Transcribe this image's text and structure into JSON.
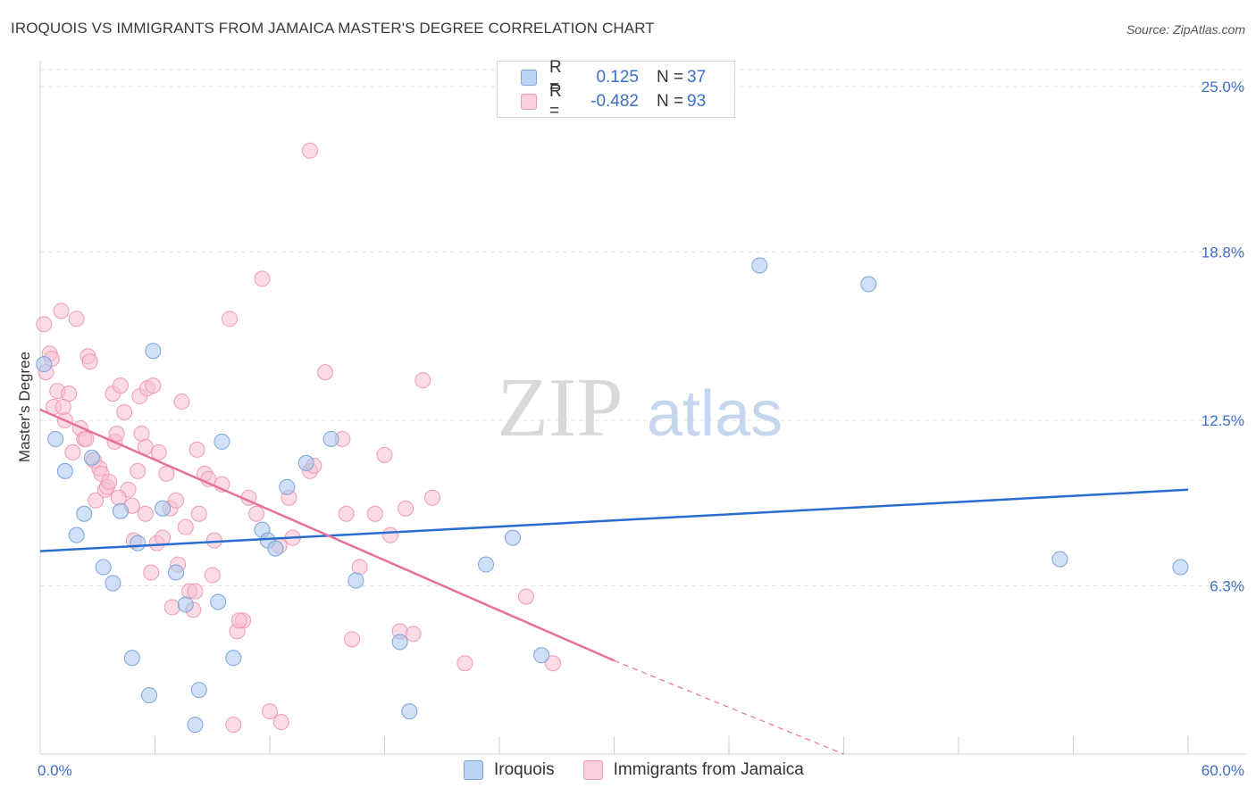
{
  "title": "IROQUOIS VS IMMIGRANTS FROM JAMAICA MASTER'S DEGREE CORRELATION CHART",
  "source": "Source: ZipAtlas.com",
  "watermark": {
    "zip": "ZIP",
    "atlas": "atlas"
  },
  "legend": {
    "rows": [
      {
        "r_label": "R =",
        "r_value": "0.125",
        "n_label": "N =",
        "n_value": "37"
      },
      {
        "r_label": "R =",
        "r_value": "-0.482",
        "n_label": "N =",
        "n_value": "93"
      }
    ]
  },
  "bottom_legend": [
    "Iroquois",
    "Immigrants from Jamaica"
  ],
  "colors": {
    "blue_fill": "#a9c6ee",
    "blue_stroke": "#7aa3d9",
    "blue_line": "#2a6dd1",
    "pink_fill": "#f7bfd0",
    "pink_stroke": "#ee9ab6",
    "pink_line": "#e8719a",
    "grid": "#e3e3e3",
    "axis_text": "#3b6fc6"
  },
  "chart_data": {
    "type": "scatter",
    "title": "IROQUOIS VS IMMIGRANTS FROM JAMAICA MASTER'S DEGREE CORRELATION CHART",
    "xlabel": "",
    "ylabel": "Master's Degree",
    "xlim": [
      0,
      60
    ],
    "ylim": [
      0,
      25
    ],
    "x_tick_labels": [
      "0.0%",
      "60.0%"
    ],
    "y_ticks": [
      6.3,
      12.5,
      18.8,
      25.0
    ],
    "y_tick_labels": [
      "6.3%",
      "12.5%",
      "18.8%",
      "25.0%"
    ],
    "grid": true,
    "series": [
      {
        "name": "Iroquois",
        "points": [
          [
            0.2,
            14.6
          ],
          [
            0.8,
            11.8
          ],
          [
            1.3,
            10.6
          ],
          [
            1.9,
            8.2
          ],
          [
            2.3,
            9.0
          ],
          [
            2.7,
            11.1
          ],
          [
            3.3,
            7.0
          ],
          [
            3.8,
            6.4
          ],
          [
            4.2,
            9.1
          ],
          [
            4.8,
            3.6
          ],
          [
            5.1,
            7.9
          ],
          [
            5.7,
            2.2
          ],
          [
            5.9,
            15.1
          ],
          [
            6.4,
            9.2
          ],
          [
            7.1,
            6.8
          ],
          [
            7.6,
            5.6
          ],
          [
            8.1,
            1.1
          ],
          [
            8.3,
            2.4
          ],
          [
            9.3,
            5.7
          ],
          [
            9.5,
            11.7
          ],
          [
            10.1,
            3.6
          ],
          [
            11.6,
            8.4
          ],
          [
            11.9,
            8.0
          ],
          [
            12.3,
            7.7
          ],
          [
            12.9,
            10.0
          ],
          [
            13.9,
            10.9
          ],
          [
            15.2,
            11.8
          ],
          [
            16.5,
            6.5
          ],
          [
            18.8,
            4.2
          ],
          [
            19.3,
            1.6
          ],
          [
            23.3,
            7.1
          ],
          [
            24.7,
            8.1
          ],
          [
            26.2,
            3.7
          ],
          [
            37.6,
            18.3
          ],
          [
            43.3,
            17.6
          ],
          [
            53.3,
            7.3
          ],
          [
            59.6,
            7.0
          ]
        ]
      },
      {
        "name": "Immigrants from Jamaica",
        "points": [
          [
            0.2,
            16.1
          ],
          [
            0.3,
            14.3
          ],
          [
            0.5,
            15.0
          ],
          [
            0.6,
            14.8
          ],
          [
            0.7,
            13.0
          ],
          [
            0.9,
            13.6
          ],
          [
            1.1,
            16.6
          ],
          [
            1.3,
            12.5
          ],
          [
            1.5,
            13.5
          ],
          [
            1.7,
            11.3
          ],
          [
            1.9,
            16.3
          ],
          [
            2.1,
            12.2
          ],
          [
            2.3,
            11.8
          ],
          [
            2.5,
            14.9
          ],
          [
            2.6,
            14.7
          ],
          [
            2.8,
            11.0
          ],
          [
            2.9,
            9.5
          ],
          [
            3.1,
            10.7
          ],
          [
            3.2,
            10.5
          ],
          [
            3.4,
            9.9
          ],
          [
            3.5,
            10.0
          ],
          [
            3.8,
            13.5
          ],
          [
            3.9,
            11.7
          ],
          [
            4.0,
            12.0
          ],
          [
            4.2,
            13.8
          ],
          [
            4.4,
            12.8
          ],
          [
            4.6,
            9.9
          ],
          [
            4.8,
            9.3
          ],
          [
            4.9,
            8.0
          ],
          [
            5.1,
            10.6
          ],
          [
            5.2,
            13.4
          ],
          [
            5.3,
            12.0
          ],
          [
            5.5,
            11.5
          ],
          [
            5.6,
            13.7
          ],
          [
            5.8,
            6.8
          ],
          [
            5.9,
            13.8
          ],
          [
            6.1,
            7.9
          ],
          [
            6.2,
            11.3
          ],
          [
            6.4,
            8.1
          ],
          [
            6.6,
            10.5
          ],
          [
            6.8,
            9.2
          ],
          [
            7.1,
            9.5
          ],
          [
            7.2,
            7.1
          ],
          [
            7.4,
            13.2
          ],
          [
            7.6,
            8.5
          ],
          [
            7.8,
            6.1
          ],
          [
            8.0,
            5.4
          ],
          [
            8.1,
            6.1
          ],
          [
            8.2,
            11.4
          ],
          [
            8.6,
            10.5
          ],
          [
            8.8,
            10.3
          ],
          [
            9.0,
            6.7
          ],
          [
            9.1,
            8.0
          ],
          [
            9.5,
            10.1
          ],
          [
            9.9,
            16.3
          ],
          [
            10.1,
            1.1
          ],
          [
            10.3,
            4.6
          ],
          [
            10.6,
            5.0
          ],
          [
            10.9,
            9.6
          ],
          [
            11.3,
            9.0
          ],
          [
            11.6,
            17.8
          ],
          [
            12.0,
            1.6
          ],
          [
            12.5,
            7.8
          ],
          [
            12.6,
            1.2
          ],
          [
            13.0,
            9.6
          ],
          [
            14.1,
            10.6
          ],
          [
            14.3,
            10.8
          ],
          [
            14.9,
            14.3
          ],
          [
            14.1,
            22.6
          ],
          [
            15.8,
            11.8
          ],
          [
            16.0,
            9.0
          ],
          [
            16.3,
            4.3
          ],
          [
            16.7,
            7.0
          ],
          [
            17.5,
            9.0
          ],
          [
            18.0,
            11.2
          ],
          [
            18.3,
            8.2
          ],
          [
            18.8,
            4.6
          ],
          [
            19.1,
            9.2
          ],
          [
            19.5,
            4.5
          ],
          [
            20.0,
            14.0
          ],
          [
            20.5,
            9.6
          ],
          [
            22.2,
            3.4
          ],
          [
            25.4,
            5.9
          ],
          [
            26.8,
            3.4
          ],
          [
            4.1,
            9.6
          ],
          [
            5.5,
            9.0
          ],
          [
            6.9,
            5.5
          ],
          [
            8.3,
            9.0
          ],
          [
            10.4,
            5.0
          ],
          [
            13.2,
            8.1
          ],
          [
            1.2,
            13.0
          ],
          [
            2.4,
            11.8
          ],
          [
            3.6,
            10.2
          ]
        ]
      }
    ],
    "trend_lines": [
      {
        "name": "Iroquois",
        "x": [
          0,
          60
        ],
        "y": [
          7.6,
          9.9
        ]
      },
      {
        "name": "Immigrants from Jamaica",
        "x": [
          0,
          30
        ],
        "y": [
          12.9,
          3.5
        ],
        "dashed_extension_to_x": 42,
        "dashed_extension_y": 0
      }
    ]
  }
}
